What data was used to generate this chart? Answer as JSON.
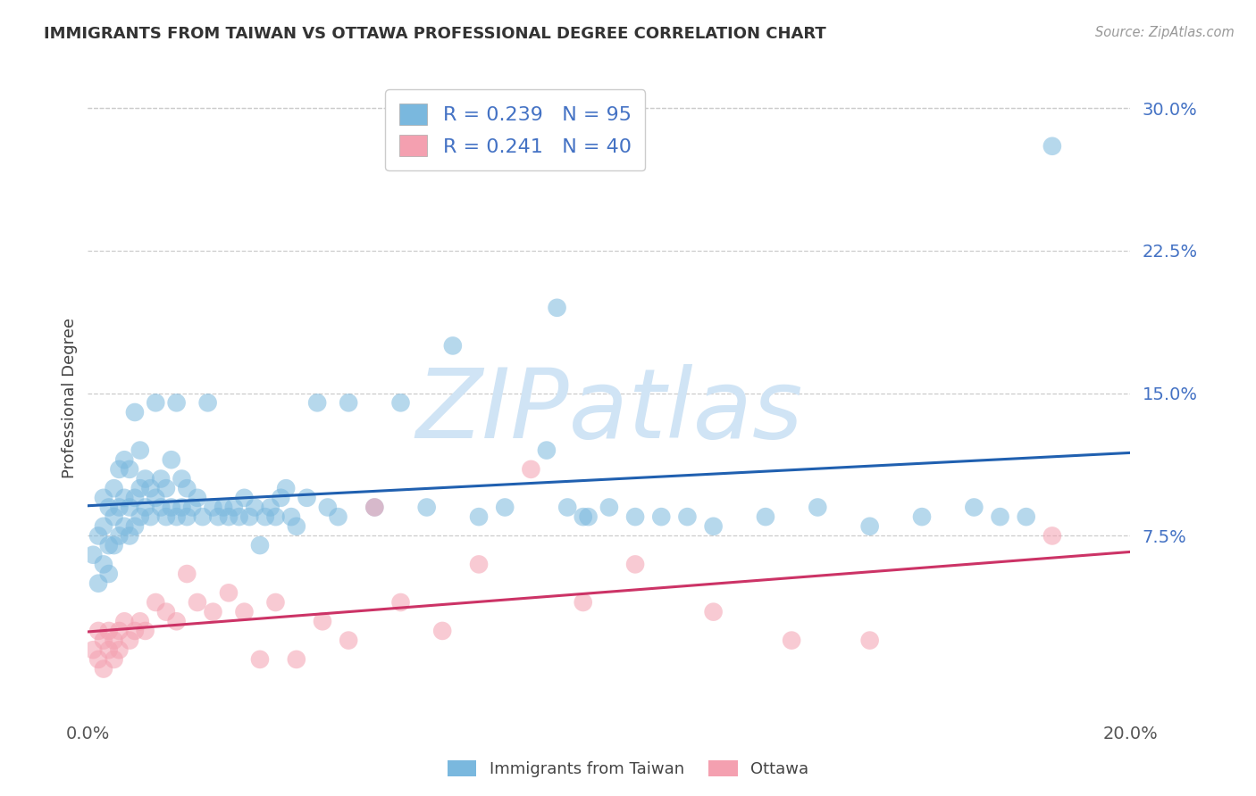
{
  "title": "IMMIGRANTS FROM TAIWAN VS OTTAWA PROFESSIONAL DEGREE CORRELATION CHART",
  "source": "Source: ZipAtlas.com",
  "ylabel": "Professional Degree",
  "xlim": [
    0.0,
    0.2
  ],
  "ylim": [
    -0.02,
    0.315
  ],
  "yticks": [
    0.075,
    0.15,
    0.225,
    0.3
  ],
  "ytick_labels": [
    "7.5%",
    "15.0%",
    "22.5%",
    "30.0%"
  ],
  "xtick_positions": [
    0.0,
    0.2
  ],
  "xtick_labels": [
    "0.0%",
    "20.0%"
  ],
  "legend_label1": "Immigrants from Taiwan",
  "legend_label2": "Ottawa",
  "R1": 0.239,
  "N1": 95,
  "R2": 0.241,
  "N2": 40,
  "color1": "#7ab8de",
  "color2": "#f4a0b0",
  "line_color1": "#2060b0",
  "line_color2": "#cc3366",
  "watermark": "ZIPatlas",
  "watermark_color": "#d0e4f5",
  "background_color": "#ffffff",
  "title_fontsize": 13,
  "grid_color": "#cccccc",
  "blue_x": [
    0.001,
    0.002,
    0.002,
    0.003,
    0.003,
    0.003,
    0.004,
    0.004,
    0.004,
    0.005,
    0.005,
    0.005,
    0.006,
    0.006,
    0.006,
    0.007,
    0.007,
    0.007,
    0.008,
    0.008,
    0.008,
    0.009,
    0.009,
    0.009,
    0.01,
    0.01,
    0.01,
    0.011,
    0.011,
    0.012,
    0.012,
    0.013,
    0.013,
    0.014,
    0.014,
    0.015,
    0.015,
    0.016,
    0.016,
    0.017,
    0.017,
    0.018,
    0.018,
    0.019,
    0.019,
    0.02,
    0.021,
    0.022,
    0.023,
    0.024,
    0.025,
    0.026,
    0.027,
    0.028,
    0.029,
    0.03,
    0.031,
    0.032,
    0.033,
    0.034,
    0.035,
    0.036,
    0.037,
    0.038,
    0.039,
    0.04,
    0.042,
    0.044,
    0.046,
    0.048,
    0.05,
    0.055,
    0.06,
    0.065,
    0.07,
    0.075,
    0.08,
    0.09,
    0.095,
    0.1,
    0.11,
    0.12,
    0.13,
    0.14,
    0.15,
    0.16,
    0.17,
    0.175,
    0.18,
    0.185,
    0.088,
    0.092,
    0.096,
    0.105,
    0.115
  ],
  "blue_y": [
    0.065,
    0.075,
    0.05,
    0.06,
    0.08,
    0.095,
    0.07,
    0.09,
    0.055,
    0.085,
    0.07,
    0.1,
    0.075,
    0.09,
    0.11,
    0.08,
    0.095,
    0.115,
    0.075,
    0.09,
    0.11,
    0.08,
    0.095,
    0.14,
    0.085,
    0.1,
    0.12,
    0.09,
    0.105,
    0.085,
    0.1,
    0.095,
    0.145,
    0.09,
    0.105,
    0.085,
    0.1,
    0.09,
    0.115,
    0.085,
    0.145,
    0.09,
    0.105,
    0.085,
    0.1,
    0.09,
    0.095,
    0.085,
    0.145,
    0.09,
    0.085,
    0.09,
    0.085,
    0.09,
    0.085,
    0.095,
    0.085,
    0.09,
    0.07,
    0.085,
    0.09,
    0.085,
    0.095,
    0.1,
    0.085,
    0.08,
    0.095,
    0.145,
    0.09,
    0.085,
    0.145,
    0.09,
    0.145,
    0.09,
    0.175,
    0.085,
    0.09,
    0.195,
    0.085,
    0.09,
    0.085,
    0.08,
    0.085,
    0.09,
    0.08,
    0.085,
    0.09,
    0.085,
    0.085,
    0.28,
    0.12,
    0.09,
    0.085,
    0.085,
    0.085
  ],
  "pink_x": [
    0.001,
    0.002,
    0.002,
    0.003,
    0.003,
    0.004,
    0.004,
    0.005,
    0.005,
    0.006,
    0.006,
    0.007,
    0.008,
    0.009,
    0.01,
    0.011,
    0.013,
    0.015,
    0.017,
    0.019,
    0.021,
    0.024,
    0.027,
    0.03,
    0.033,
    0.036,
    0.04,
    0.045,
    0.05,
    0.055,
    0.06,
    0.068,
    0.075,
    0.085,
    0.095,
    0.105,
    0.12,
    0.135,
    0.15,
    0.185
  ],
  "pink_y": [
    0.015,
    0.025,
    0.01,
    0.02,
    0.005,
    0.025,
    0.015,
    0.02,
    0.01,
    0.025,
    0.015,
    0.03,
    0.02,
    0.025,
    0.03,
    0.025,
    0.04,
    0.035,
    0.03,
    0.055,
    0.04,
    0.035,
    0.045,
    0.035,
    0.01,
    0.04,
    0.01,
    0.03,
    0.02,
    0.09,
    0.04,
    0.025,
    0.06,
    0.11,
    0.04,
    0.06,
    0.035,
    0.02,
    0.02,
    0.075
  ]
}
